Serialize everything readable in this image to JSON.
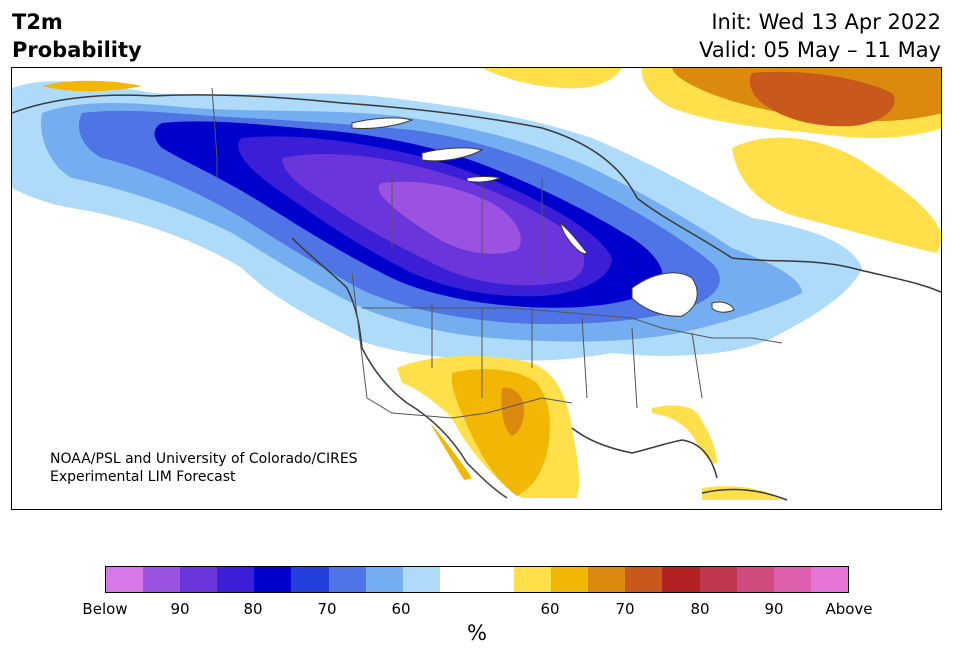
{
  "title": {
    "line1": "T2m",
    "line2": "Probability"
  },
  "header_right": {
    "init": "Init: Wed 13 Apr 2022",
    "valid": "Valid: 05 May – 11 May"
  },
  "credit": {
    "line1": "NOAA/PSL and University of Colorado/CIRES",
    "line2": "Experimental LIM Forecast"
  },
  "colorbar": {
    "colors": [
      "#d877e8",
      "#9c52e0",
      "#6a35da",
      "#3a1fd6",
      "#0000cd",
      "#2340dc",
      "#4f74e6",
      "#74aef0",
      "#aedbfa",
      "#ffffff",
      "#ffffff",
      "#ffe04a",
      "#f2b705",
      "#dc8a0e",
      "#c9581c",
      "#b22222",
      "#c0374f",
      "#d04c7e",
      "#dd5fad",
      "#e674d6"
    ],
    "tick_labels": [
      "Below",
      "90",
      "80",
      "70",
      "60",
      "60",
      "70",
      "80",
      "90",
      "Above"
    ],
    "unit": "%"
  },
  "map": {
    "region": "North America",
    "legend_colors": {
      "below_60": "#aedbfa",
      "below_70": "#74aef0",
      "below_75": "#4f74e6",
      "below_80": "#0000cd",
      "below_85": "#3a1fd6",
      "below_90": "#6a35da",
      "below_95": "#9c52e0",
      "above_60": "#ffe04a",
      "above_70": "#f2b705",
      "above_75": "#dc8a0e",
      "above_80": "#c9581c"
    }
  }
}
